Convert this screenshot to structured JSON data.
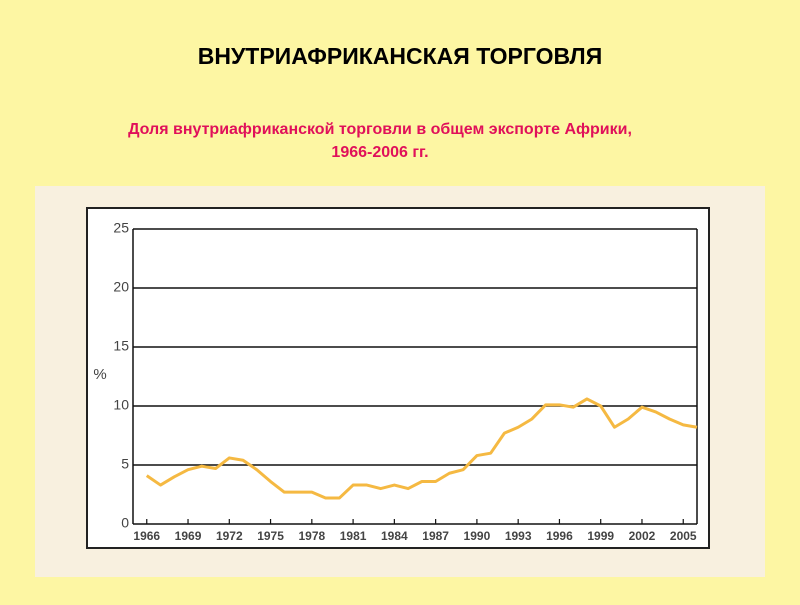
{
  "chart_data": {
    "type": "line",
    "title": "ВНУТРИАФРИКАНСКАЯ  ТОРГОВЛЯ",
    "subtitle": [
      "Доля внутриафриканской  торговли в общем экспорте Африки,",
      "1966-2006 гг."
    ],
    "y_label": "%",
    "x": [
      1966,
      1967,
      1968,
      1969,
      1970,
      1971,
      1972,
      1973,
      1974,
      1975,
      1976,
      1977,
      1978,
      1979,
      1980,
      1981,
      1982,
      1983,
      1984,
      1985,
      1986,
      1987,
      1988,
      1989,
      1990,
      1991,
      1992,
      1993,
      1994,
      1995,
      1996,
      1997,
      1998,
      1999,
      2000,
      2001,
      2002,
      2003,
      2004,
      2005,
      2006
    ],
    "series": [
      {
        "color": "#f5b942",
        "values": [
          4.1,
          3.3,
          4.0,
          4.6,
          4.9,
          4.7,
          5.6,
          5.4,
          4.6,
          3.6,
          2.7,
          2.7,
          2.7,
          2.2,
          2.2,
          3.3,
          3.3,
          3.0,
          3.3,
          3.0,
          3.6,
          3.6,
          4.3,
          4.6,
          5.8,
          6.0,
          7.7,
          8.2,
          8.9,
          10.1,
          10.1,
          9.9,
          10.6,
          10.0,
          8.2,
          8.9,
          9.9,
          9.5,
          8.9,
          8.4,
          8.2
        ]
      }
    ],
    "xlim": [
      1965,
      2006
    ],
    "xticks": [
      1966,
      1969,
      1972,
      1975,
      1978,
      1981,
      1984,
      1987,
      1990,
      1993,
      1996,
      1999,
      2002,
      2005
    ],
    "ylim": [
      0,
      25
    ],
    "yticks": [
      0,
      5,
      10,
      15,
      20,
      25
    ],
    "grid": true
  }
}
